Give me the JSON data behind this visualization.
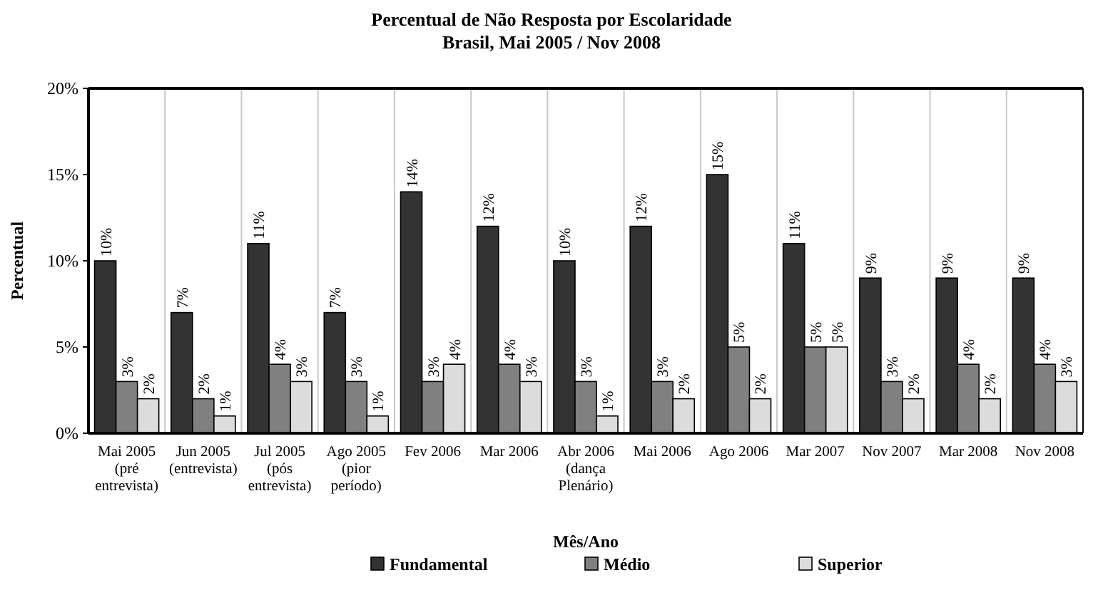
{
  "chart_data": {
    "type": "bar",
    "title": "Percentual de Não Resposta por Escolaridade\nBrasil, Mai 2005 / Nov 2008",
    "xlabel": "Mês/Ano",
    "ylabel": "Percentual",
    "categories": [
      "Mai 2005\n(pré\nentrevista)",
      "Jun 2005\n(entrevista)",
      "Jul 2005\n(pós\nentrevista)",
      "Ago 2005\n(pior\nperíodo)",
      "Fev 2006",
      "Mar 2006",
      "Abr 2006\n(dança\nPlenário)",
      "Mai 2006",
      "Ago 2006",
      "Mar 2007",
      "Nov 2007",
      "Mar 2008",
      "Nov 2008"
    ],
    "series": [
      {
        "name": "Fundamental",
        "color": "#333333",
        "values": [
          10,
          7,
          11,
          7,
          14,
          12,
          10,
          12,
          15,
          11,
          9,
          9,
          9
        ],
        "value_labels": [
          "10%",
          "7%",
          "11%",
          "7%",
          "14%",
          "12%",
          "10%",
          "12%",
          "15%",
          "11%",
          "9%",
          "9%",
          "9%"
        ]
      },
      {
        "name": "Médio",
        "color": "#808080",
        "values": [
          3,
          2,
          4,
          3,
          3,
          4,
          3,
          3,
          5,
          5,
          3,
          4,
          4
        ],
        "value_labels": [
          "3%",
          "2%",
          "4%",
          "3%",
          "3%",
          "4%",
          "3%",
          "3%",
          "5%",
          "5%",
          "3%",
          "4%",
          "4%"
        ]
      },
      {
        "name": "Superior",
        "color": "#dcdcdc",
        "values": [
          2,
          1,
          3,
          1,
          4,
          3,
          1,
          2,
          2,
          5,
          2,
          2,
          3
        ],
        "value_labels": [
          "2%",
          "1%",
          "3%",
          "1%",
          "4%",
          "3%",
          "1%",
          "2%",
          "2%",
          "5%",
          "2%",
          "2%",
          "3%"
        ]
      }
    ],
    "ylim": [
      0,
      20
    ],
    "yticks": [
      {
        "value": 0,
        "label": "0%"
      },
      {
        "value": 5,
        "label": "5%"
      },
      {
        "value": 10,
        "label": "10%"
      },
      {
        "value": 15,
        "label": "15%"
      },
      {
        "value": 20,
        "label": "20%"
      }
    ],
    "grid": "x",
    "legend": "bottom"
  }
}
